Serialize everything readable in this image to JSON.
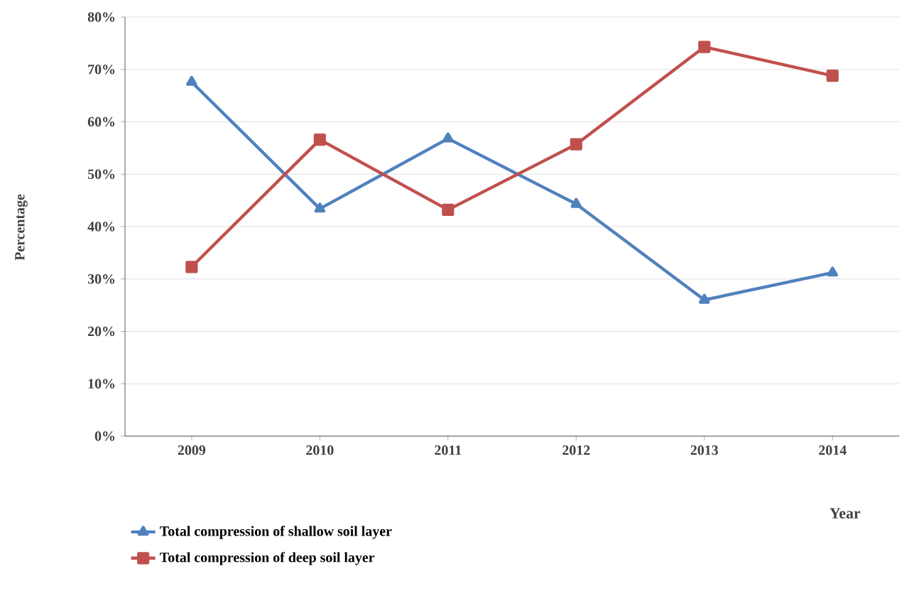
{
  "chart_data": {
    "type": "line",
    "xlabel": "Year",
    "ylabel": "Percentage",
    "categories": [
      "2009",
      "2010",
      "2011",
      "2012",
      "2013",
      "2014"
    ],
    "series": [
      {
        "name": "Total compression of shallow soil layer",
        "color": "#4f81bd",
        "marker": "triangle",
        "values": [
          67.6,
          43.4,
          56.8,
          44.3,
          26.0,
          31.2
        ]
      },
      {
        "name": "Total compression of deep soil layer",
        "color": "#c0504d",
        "marker": "square",
        "values": [
          32.3,
          56.6,
          43.2,
          55.7,
          74.3,
          68.8
        ]
      }
    ],
    "ylim": [
      0,
      80
    ],
    "yticks": [
      {
        "value": 0,
        "label": "0%"
      },
      {
        "value": 10,
        "label": "10%"
      },
      {
        "value": 20,
        "label": "20%"
      },
      {
        "value": 30,
        "label": "30%"
      },
      {
        "value": 40,
        "label": "40%"
      },
      {
        "value": 50,
        "label": "50%"
      },
      {
        "value": 60,
        "label": "60%"
      },
      {
        "value": 70,
        "label": "70%"
      },
      {
        "value": 80,
        "label": "80%"
      }
    ],
    "grid": "y",
    "legend": "bottom left",
    "line_style": "solid"
  }
}
